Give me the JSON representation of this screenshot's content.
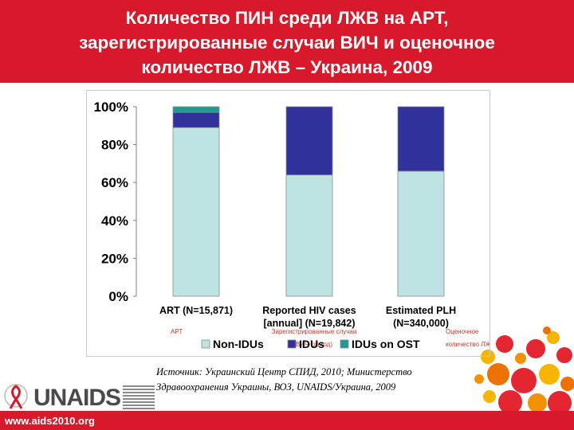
{
  "header": {
    "title_lines": [
      "Количество ПИН среди ЛЖВ на АРТ,",
      "зарегистрированные случаи ВИЧ и оценочное",
      "количество ЛЖВ – Украина, 2009"
    ]
  },
  "chart_data": {
    "type": "bar",
    "stacked": true,
    "categories": [
      "ART (N=15,871)",
      "Reported HIV cases [annual] (N=19,842)",
      "Estimated PLH (N=340,000)"
    ],
    "category_lines": [
      [
        "ART (N=15,871)"
      ],
      [
        "Reported HIV cases",
        "[annual] (N=19,842)"
      ],
      [
        "Estimated PLH",
        "(N=340,000)"
      ]
    ],
    "category_translations": [
      [
        "АРТ"
      ],
      [
        "Зарегистрированные случаи",
        "ВИЧ (за год)"
      ],
      [
        "Оценочное",
        "количество ЛЖВ"
      ]
    ],
    "series": [
      {
        "name": "Non-IDUs",
        "values": [
          89,
          64,
          66
        ],
        "color": "#bde3e3"
      },
      {
        "name": "IDUs",
        "values": [
          8,
          36,
          34
        ],
        "color": "#31319c"
      },
      {
        "name": "IDUs on OST",
        "values": [
          3,
          0,
          0
        ],
        "color": "#1f9a90"
      }
    ],
    "yticks": [
      "100%",
      "80%",
      "60%",
      "40%",
      "20%",
      "0%"
    ],
    "ylim": [
      0,
      100
    ],
    "legend": "bottom",
    "grid": false
  },
  "source": {
    "lines": [
      "Источник: Украинский Центр СПИД, 2010; Министерство",
      "Здравоохранения Украины, ВОЗ, UNAIDS/Украина, 2009"
    ]
  },
  "logo": {
    "text": "UNAIDS"
  },
  "footer": {
    "url": "www.aids2010.org"
  },
  "colors": {
    "brand_red": "#d7192b"
  }
}
